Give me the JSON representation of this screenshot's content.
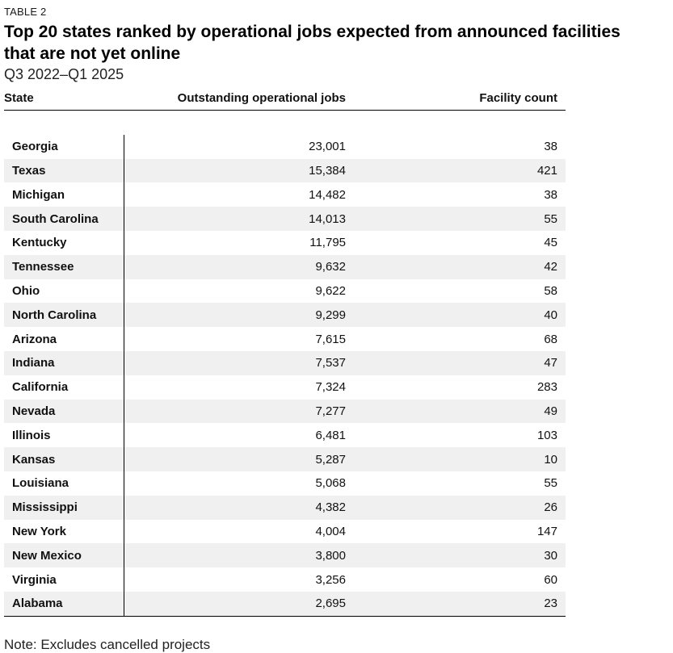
{
  "header": {
    "eyebrow": "TABLE 2",
    "title": "Top 20 states ranked by operational jobs expected from announced facilities that are not yet online",
    "subtitle": "Q3 2022–Q1 2025"
  },
  "chart_data": {
    "type": "table",
    "title": "Top 20 states ranked by operational jobs expected from announced facilities that are not yet online",
    "subtitle": "Q3 2022–Q1 2025",
    "columns": [
      "State",
      "Outstanding operational jobs",
      "Facility count"
    ],
    "rows": [
      {
        "state": "Georgia",
        "jobs": "23,001",
        "count": "38"
      },
      {
        "state": "Texas",
        "jobs": "15,384",
        "count": "421"
      },
      {
        "state": "Michigan",
        "jobs": "14,482",
        "count": "38"
      },
      {
        "state": "South Carolina",
        "jobs": "14,013",
        "count": "55"
      },
      {
        "state": "Kentucky",
        "jobs": "11,795",
        "count": "45"
      },
      {
        "state": "Tennessee",
        "jobs": "9,632",
        "count": "42"
      },
      {
        "state": "Ohio",
        "jobs": "9,622",
        "count": "58"
      },
      {
        "state": "North Carolina",
        "jobs": "9,299",
        "count": "40"
      },
      {
        "state": "Arizona",
        "jobs": "7,615",
        "count": "68"
      },
      {
        "state": "Indiana",
        "jobs": "7,537",
        "count": "47"
      },
      {
        "state": "California",
        "jobs": "7,324",
        "count": "283"
      },
      {
        "state": "Nevada",
        "jobs": "7,277",
        "count": "49"
      },
      {
        "state": "Illinois",
        "jobs": "6,481",
        "count": "103"
      },
      {
        "state": "Kansas",
        "jobs": "5,287",
        "count": "10"
      },
      {
        "state": "Louisiana",
        "jobs": "5,068",
        "count": "55"
      },
      {
        "state": "Mississippi",
        "jobs": "4,382",
        "count": "26"
      },
      {
        "state": "New York",
        "jobs": "4,004",
        "count": "147"
      },
      {
        "state": "New Mexico",
        "jobs": "3,800",
        "count": "30"
      },
      {
        "state": "Virginia",
        "jobs": "3,256",
        "count": "60"
      },
      {
        "state": "Alabama",
        "jobs": "2,695",
        "count": "23"
      }
    ]
  },
  "note": "Note: Excludes cancelled projects"
}
